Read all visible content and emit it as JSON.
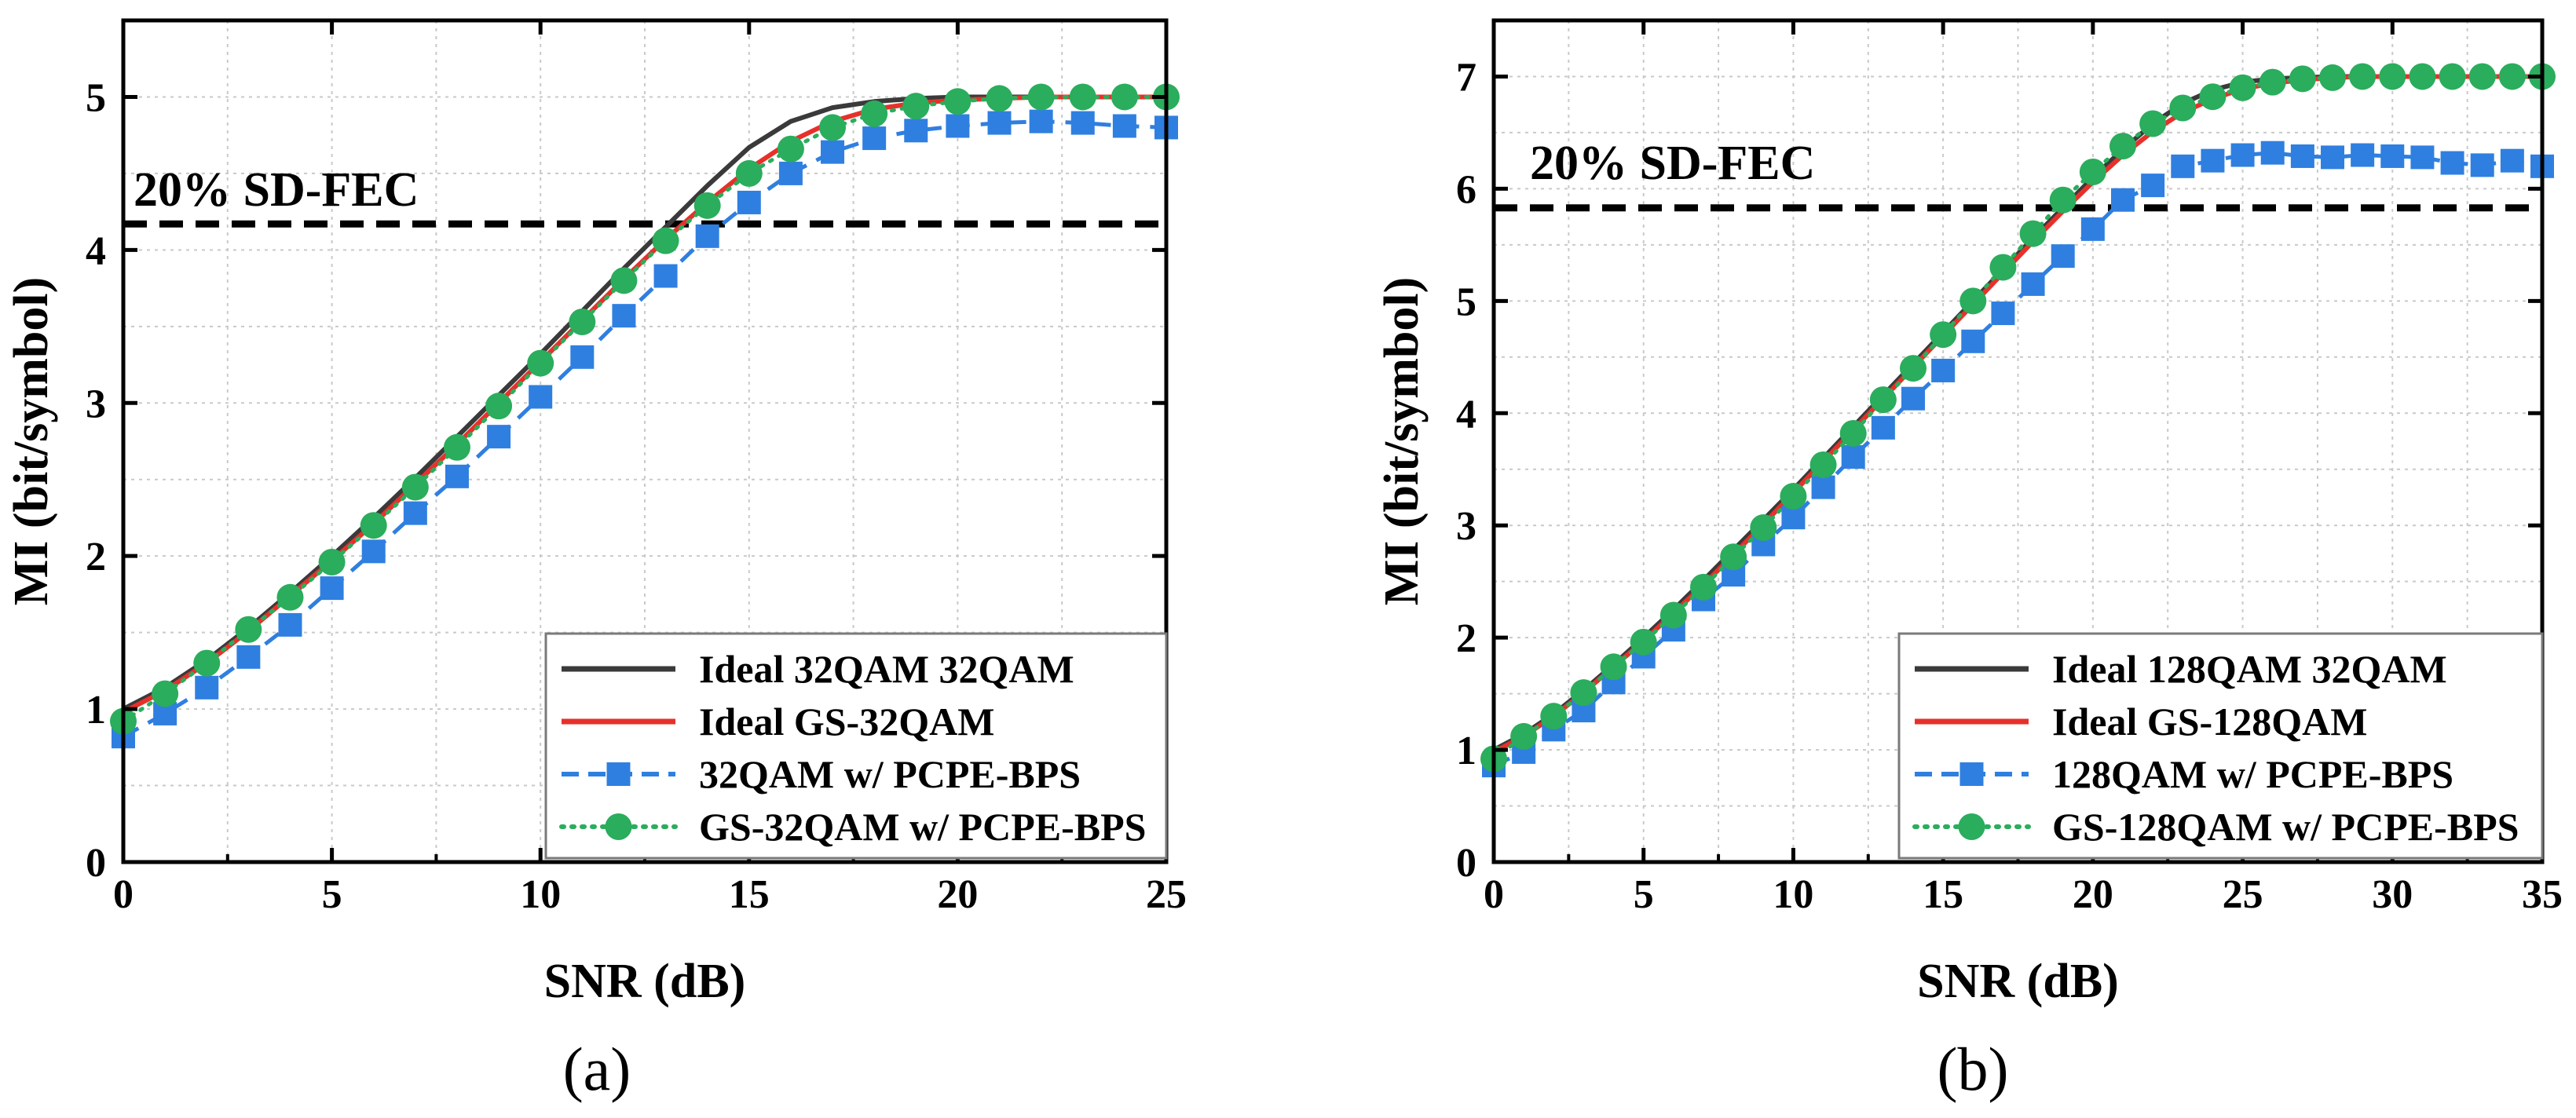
{
  "figure": {
    "captions": [
      "(a)",
      "(b)"
    ]
  },
  "chart_data": [
    {
      "id": "a",
      "type": "line",
      "title": "",
      "caption_label": "a",
      "xlabel": "SNR (dB)",
      "ylabel": "MI (bit/symbol)",
      "xlim": [
        0,
        25
      ],
      "ylim": [
        0,
        5.5
      ],
      "xticks": [
        0,
        5,
        10,
        15,
        20,
        25
      ],
      "yticks": [
        0,
        1,
        2,
        3,
        4,
        5
      ],
      "grid": true,
      "legend_position": "bottom-right",
      "threshold": {
        "label": "20% SD-FEC",
        "value": 4.17,
        "color": "#000000"
      },
      "series": [
        {
          "name": "Ideal 32QAM 32QAM",
          "color": "#3a3a3a",
          "style": "solid",
          "marker": "none",
          "x": [
            0,
            1,
            2,
            3,
            4,
            5,
            6,
            7,
            8,
            9,
            10,
            11,
            12,
            13,
            14,
            15,
            16,
            17,
            18,
            19,
            20,
            21,
            22,
            23,
            24,
            25
          ],
          "y": [
            1.0,
            1.14,
            1.32,
            1.53,
            1.76,
            2.0,
            2.25,
            2.51,
            2.78,
            3.05,
            3.32,
            3.6,
            3.88,
            4.15,
            4.42,
            4.67,
            4.84,
            4.93,
            4.97,
            4.99,
            5.0,
            5.0,
            5.0,
            5.0,
            5.0,
            5.0
          ]
        },
        {
          "name": "Ideal GS-32QAM",
          "color": "#e8302a",
          "style": "solid",
          "marker": "none",
          "x": [
            0,
            1,
            2,
            3,
            4,
            5,
            6,
            7,
            8,
            9,
            10,
            11,
            12,
            13,
            14,
            15,
            16,
            17,
            18,
            19,
            20,
            21,
            22,
            23,
            24,
            25
          ],
          "y": [
            0.98,
            1.12,
            1.3,
            1.51,
            1.74,
            1.97,
            2.21,
            2.47,
            2.73,
            3.0,
            3.27,
            3.54,
            3.81,
            4.07,
            4.31,
            4.53,
            4.71,
            4.84,
            4.92,
            4.96,
            4.98,
            4.99,
            5.0,
            5.0,
            5.0,
            5.0
          ]
        },
        {
          "name": "32QAM w/ PCPE-BPS",
          "color": "#2f7fe0",
          "style": "dashed",
          "marker": "square",
          "x": [
            0,
            1,
            2,
            3,
            4,
            5,
            6,
            7,
            8,
            9,
            10,
            11,
            12,
            13,
            14,
            15,
            16,
            17,
            18,
            19,
            20,
            21,
            22,
            23,
            24,
            25
          ],
          "y": [
            0.82,
            0.97,
            1.14,
            1.34,
            1.55,
            1.79,
            2.03,
            2.28,
            2.52,
            2.78,
            3.04,
            3.3,
            3.57,
            3.83,
            4.09,
            4.31,
            4.5,
            4.64,
            4.73,
            4.78,
            4.81,
            4.83,
            4.84,
            4.83,
            4.81,
            4.8
          ]
        },
        {
          "name": "GS-32QAM w/ PCPE-BPS",
          "color": "#2aad5c",
          "style": "dotted",
          "marker": "circle",
          "x": [
            0,
            1,
            2,
            3,
            4,
            5,
            6,
            7,
            8,
            9,
            10,
            11,
            12,
            13,
            14,
            15,
            16,
            17,
            18,
            19,
            20,
            21,
            22,
            23,
            24,
            25
          ],
          "y": [
            0.92,
            1.1,
            1.3,
            1.52,
            1.73,
            1.96,
            2.2,
            2.45,
            2.71,
            2.98,
            3.26,
            3.53,
            3.8,
            4.06,
            4.29,
            4.5,
            4.66,
            4.8,
            4.89,
            4.94,
            4.97,
            4.99,
            5.0,
            5.0,
            5.0,
            5.0
          ]
        }
      ]
    },
    {
      "id": "b",
      "type": "line",
      "title": "",
      "caption_label": "b",
      "xlabel": "SNR (dB)",
      "ylabel": "MI (bit/symbol)",
      "xlim": [
        0,
        35
      ],
      "ylim": [
        0,
        7.5
      ],
      "xticks": [
        0,
        5,
        10,
        15,
        20,
        25,
        30,
        35
      ],
      "yticks": [
        0,
        1,
        2,
        3,
        4,
        5,
        6,
        7
      ],
      "grid": true,
      "legend_position": "bottom-right",
      "threshold": {
        "label": "20% SD-FEC",
        "value": 5.83,
        "color": "#000000"
      },
      "series": [
        {
          "name": "Ideal 128QAM 32QAM",
          "color": "#3a3a3a",
          "style": "solid",
          "marker": "none",
          "x": [
            0,
            1,
            2,
            3,
            4,
            5,
            6,
            7,
            8,
            9,
            10,
            11,
            12,
            13,
            14,
            15,
            16,
            17,
            18,
            19,
            20,
            21,
            22,
            23,
            24,
            25,
            26,
            27,
            28,
            29,
            30,
            31,
            32,
            33,
            34,
            35
          ],
          "y": [
            1.0,
            1.14,
            1.32,
            1.53,
            1.76,
            2.0,
            2.25,
            2.51,
            2.78,
            3.05,
            3.32,
            3.6,
            3.88,
            4.16,
            4.44,
            4.72,
            5.0,
            5.28,
            5.56,
            5.83,
            6.1,
            6.35,
            6.58,
            6.76,
            6.88,
            6.95,
            6.98,
            6.99,
            7.0,
            7.0,
            7.0,
            7.0,
            7.0,
            7.0,
            7.0,
            7.0
          ]
        },
        {
          "name": "Ideal GS-128QAM",
          "color": "#e8302a",
          "style": "solid",
          "marker": "none",
          "x": [
            0,
            1,
            2,
            3,
            4,
            5,
            6,
            7,
            8,
            9,
            10,
            11,
            12,
            13,
            14,
            15,
            16,
            17,
            18,
            19,
            20,
            21,
            22,
            23,
            24,
            25,
            26,
            27,
            28,
            29,
            30,
            31,
            32,
            33,
            34,
            35
          ],
          "y": [
            0.98,
            1.12,
            1.3,
            1.51,
            1.74,
            1.97,
            2.22,
            2.47,
            2.74,
            3.01,
            3.29,
            3.57,
            3.85,
            4.13,
            4.41,
            4.69,
            4.97,
            5.25,
            5.53,
            5.8,
            6.06,
            6.3,
            6.51,
            6.68,
            6.8,
            6.89,
            6.94,
            6.97,
            6.99,
            7.0,
            7.0,
            7.0,
            7.0,
            7.0,
            7.0,
            7.0
          ]
        },
        {
          "name": "128QAM w/ PCPE-BPS",
          "color": "#2f7fe0",
          "style": "dashed",
          "marker": "square",
          "x": [
            0,
            1,
            2,
            3,
            4,
            5,
            6,
            7,
            8,
            9,
            10,
            11,
            12,
            13,
            14,
            15,
            16,
            17,
            18,
            19,
            20,
            21,
            22,
            23,
            24,
            25,
            26,
            27,
            28,
            29,
            30,
            31,
            32,
            33,
            34,
            35
          ],
          "y": [
            0.86,
            0.98,
            1.18,
            1.35,
            1.6,
            1.83,
            2.07,
            2.34,
            2.56,
            2.83,
            3.07,
            3.34,
            3.61,
            3.87,
            4.13,
            4.38,
            4.64,
            4.89,
            5.15,
            5.4,
            5.64,
            5.9,
            6.03,
            6.2,
            6.25,
            6.3,
            6.32,
            6.29,
            6.28,
            6.3,
            6.29,
            6.28,
            6.23,
            6.21,
            6.25,
            6.2
          ]
        },
        {
          "name": "GS-128QAM w/ PCPE-BPS",
          "color": "#2aad5c",
          "style": "dotted",
          "marker": "circle",
          "x": [
            0,
            1,
            2,
            3,
            4,
            5,
            6,
            7,
            8,
            9,
            10,
            11,
            12,
            13,
            14,
            15,
            16,
            17,
            18,
            19,
            20,
            21,
            22,
            23,
            24,
            25,
            26,
            27,
            28,
            29,
            30,
            31,
            32,
            33,
            34,
            35
          ],
          "y": [
            0.92,
            1.12,
            1.3,
            1.51,
            1.74,
            1.96,
            2.2,
            2.45,
            2.72,
            2.98,
            3.26,
            3.54,
            3.82,
            4.12,
            4.4,
            4.7,
            5.0,
            5.3,
            5.6,
            5.9,
            6.15,
            6.38,
            6.58,
            6.72,
            6.82,
            6.9,
            6.95,
            6.98,
            6.99,
            7.0,
            7.0,
            7.0,
            7.0,
            7.0,
            7.0,
            7.0
          ]
        }
      ]
    }
  ]
}
